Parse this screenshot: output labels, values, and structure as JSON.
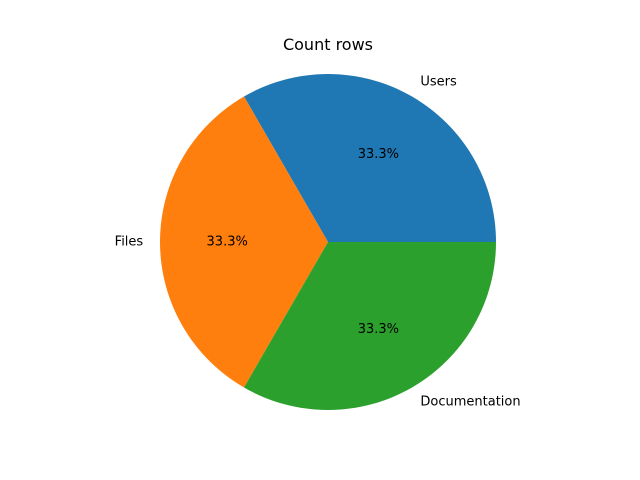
{
  "chart_data": {
    "type": "pie",
    "title": "Count rows",
    "categories": [
      "Users",
      "Files",
      "Documentation"
    ],
    "values": [
      1,
      1,
      1
    ],
    "percent_labels": [
      "33.3%",
      "33.3%",
      "33.3%"
    ],
    "colors": [
      "#1f77b4",
      "#ff7f0e",
      "#2ca02c"
    ],
    "start_angle_deg": 0,
    "direction": "counterclockwise",
    "legend": "none"
  }
}
